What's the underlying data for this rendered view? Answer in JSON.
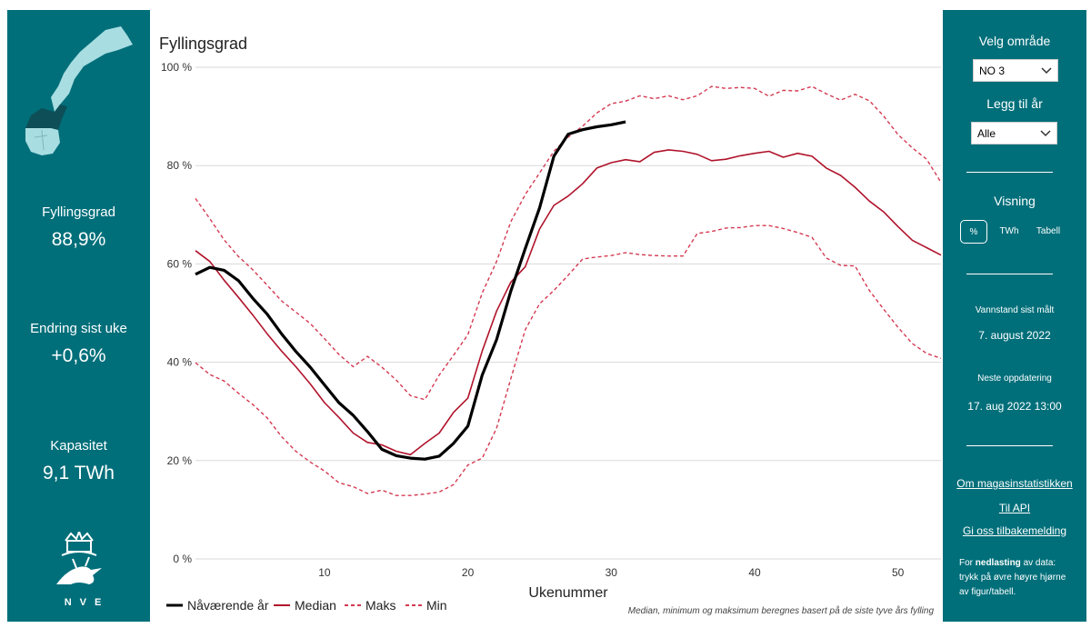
{
  "left_panel": {
    "kpis": [
      {
        "label": "Fyllingsgrad",
        "value": "88,9%"
      },
      {
        "label": "Endring sist uke",
        "value": "+0,6%"
      },
      {
        "label": "Kapasitet",
        "value": "9,1 TWh"
      }
    ],
    "logo_text": "NVE"
  },
  "right_panel": {
    "area_title": "Velg område",
    "area_selected": "NO 3",
    "year_title": "Legg til år",
    "year_selected": "Alle",
    "view_title": "Visning",
    "view_options": [
      "%",
      "TWh",
      "Tabell"
    ],
    "view_active": "%",
    "measured_label": "Vannstand sist målt",
    "measured_value": "7. august 2022",
    "next_update_label": "Neste oppdatering",
    "next_update_value": "17. aug 2022 13:00",
    "links": [
      "Om magasinstatistikken",
      "Til API",
      "Gi oss tilbakemelding"
    ],
    "download_note_pre": "For ",
    "download_note_bold": "nedlasting",
    "download_note_post": " av data: trykk på øvre høyre hjørne av figur/tabell."
  },
  "colors": {
    "panel": "#006f7a",
    "current": "#000000",
    "median": "#b0132b",
    "maxmin": "#d43a52",
    "grid": "#d9d9d9"
  },
  "chart_data": {
    "type": "line",
    "title": "Fyllingsgrad",
    "xlabel": "Ukenummer",
    "ylabel": "",
    "xlim": [
      1,
      53
    ],
    "ylim": [
      0,
      100
    ],
    "x_ticks": [
      10,
      20,
      30,
      40,
      50
    ],
    "y_ticks": [
      "0 %",
      "20 %",
      "40 %",
      "60 %",
      "80 %",
      "100 %"
    ],
    "y_tick_values": [
      0,
      20,
      40,
      60,
      80,
      100
    ],
    "footnote": "Median, minimum og maksimum beregnes basert på de siste tyve års fylling",
    "series": [
      {
        "name": "Nåværende år",
        "style": "solid-thick",
        "color": "#000000",
        "x": [
          1,
          2,
          3,
          4,
          5,
          6,
          7,
          8,
          9,
          10,
          11,
          12,
          13,
          14,
          15,
          16,
          17,
          18,
          19,
          20,
          21,
          22,
          23,
          24,
          25,
          26,
          27,
          28,
          29,
          30,
          31
        ],
        "values": [
          57.9,
          59.3,
          58.7,
          56.6,
          53.0,
          49.8,
          45.8,
          42.2,
          39.0,
          35.4,
          31.8,
          29.2,
          25.9,
          22.3,
          21.0,
          20.5,
          20.3,
          20.9,
          23.5,
          27.0,
          37.4,
          44.6,
          54.5,
          63.1,
          71.4,
          81.9,
          86.4,
          87.3,
          87.9,
          88.3,
          88.9
        ]
      },
      {
        "name": "Median",
        "style": "solid",
        "color": "#b0132b",
        "x": [
          1,
          2,
          3,
          4,
          5,
          6,
          7,
          8,
          9,
          10,
          11,
          12,
          13,
          14,
          15,
          16,
          17,
          18,
          19,
          20,
          21,
          22,
          23,
          24,
          25,
          26,
          27,
          28,
          29,
          30,
          31,
          32,
          33,
          34,
          35,
          36,
          37,
          38,
          39,
          40,
          41,
          42,
          43,
          44,
          45,
          46,
          47,
          48,
          49,
          50,
          51,
          52,
          53
        ],
        "values": [
          62.7,
          60.5,
          56.7,
          53.2,
          49.6,
          45.8,
          42.3,
          39.1,
          35.6,
          31.8,
          28.8,
          25.6,
          23.7,
          23.2,
          21.9,
          21.2,
          23.5,
          25.6,
          29.8,
          32.7,
          42.3,
          50.4,
          56.3,
          59.4,
          67.1,
          71.9,
          73.8,
          76.3,
          79.5,
          80.6,
          81.2,
          80.8,
          82.7,
          83.2,
          82.9,
          82.3,
          81.0,
          81.3,
          82.0,
          82.5,
          82.9,
          81.7,
          82.5,
          81.9,
          79.5,
          78.0,
          75.6,
          72.8,
          70.6,
          67.6,
          64.8,
          63.3,
          61.8
        ]
      },
      {
        "name": "Maks",
        "style": "dashed",
        "color": "#d43a52",
        "x": [
          1,
          2,
          3,
          4,
          5,
          6,
          7,
          8,
          9,
          10,
          11,
          12,
          13,
          14,
          15,
          16,
          17,
          18,
          19,
          20,
          21,
          22,
          23,
          24,
          25,
          26,
          27,
          28,
          29,
          30,
          31,
          32,
          33,
          34,
          35,
          36,
          37,
          38,
          39,
          40,
          41,
          42,
          43,
          44,
          45,
          46,
          47,
          48,
          49,
          50,
          51,
          52,
          53
        ],
        "values": [
          73.3,
          69.2,
          64.9,
          61.5,
          58.8,
          55.7,
          52.5,
          50.2,
          47.9,
          44.8,
          41.6,
          39.1,
          41.2,
          39.0,
          36.4,
          33.2,
          32.4,
          37.4,
          41.4,
          45.6,
          54.1,
          60.5,
          68.6,
          74.1,
          78.5,
          82.9,
          85.8,
          88.0,
          90.7,
          92.6,
          93.1,
          94.2,
          93.6,
          94.2,
          93.4,
          94.2,
          96.1,
          95.7,
          95.9,
          95.7,
          94.1,
          95.3,
          95.2,
          96.1,
          94.6,
          93.3,
          94.5,
          93.2,
          90.1,
          86.3,
          83.6,
          81.3,
          76.6
        ]
      },
      {
        "name": "Min",
        "style": "dashed",
        "color": "#d43a52",
        "x": [
          1,
          2,
          3,
          4,
          5,
          6,
          7,
          8,
          9,
          10,
          11,
          12,
          13,
          14,
          15,
          16,
          17,
          18,
          19,
          20,
          21,
          22,
          23,
          24,
          25,
          26,
          27,
          28,
          29,
          30,
          31,
          32,
          33,
          34,
          35,
          36,
          37,
          38,
          39,
          40,
          41,
          42,
          43,
          44,
          45,
          46,
          47,
          48,
          49,
          50,
          51,
          52,
          53
        ],
        "values": [
          39.9,
          37.5,
          36.2,
          33.7,
          31.4,
          28.7,
          24.9,
          21.9,
          19.7,
          17.9,
          15.5,
          14.7,
          13.3,
          14.0,
          12.9,
          12.9,
          13.2,
          13.6,
          15.1,
          19.1,
          20.5,
          26.6,
          36.7,
          46.6,
          51.9,
          54.6,
          57.7,
          61.0,
          61.4,
          61.7,
          62.3,
          61.9,
          61.7,
          61.6,
          61.6,
          66.2,
          66.6,
          67.3,
          67.4,
          67.8,
          67.8,
          67.2,
          66.4,
          65.4,
          61.2,
          59.7,
          59.6,
          54.6,
          50.8,
          47.1,
          43.8,
          41.8,
          40.8
        ]
      }
    ]
  }
}
